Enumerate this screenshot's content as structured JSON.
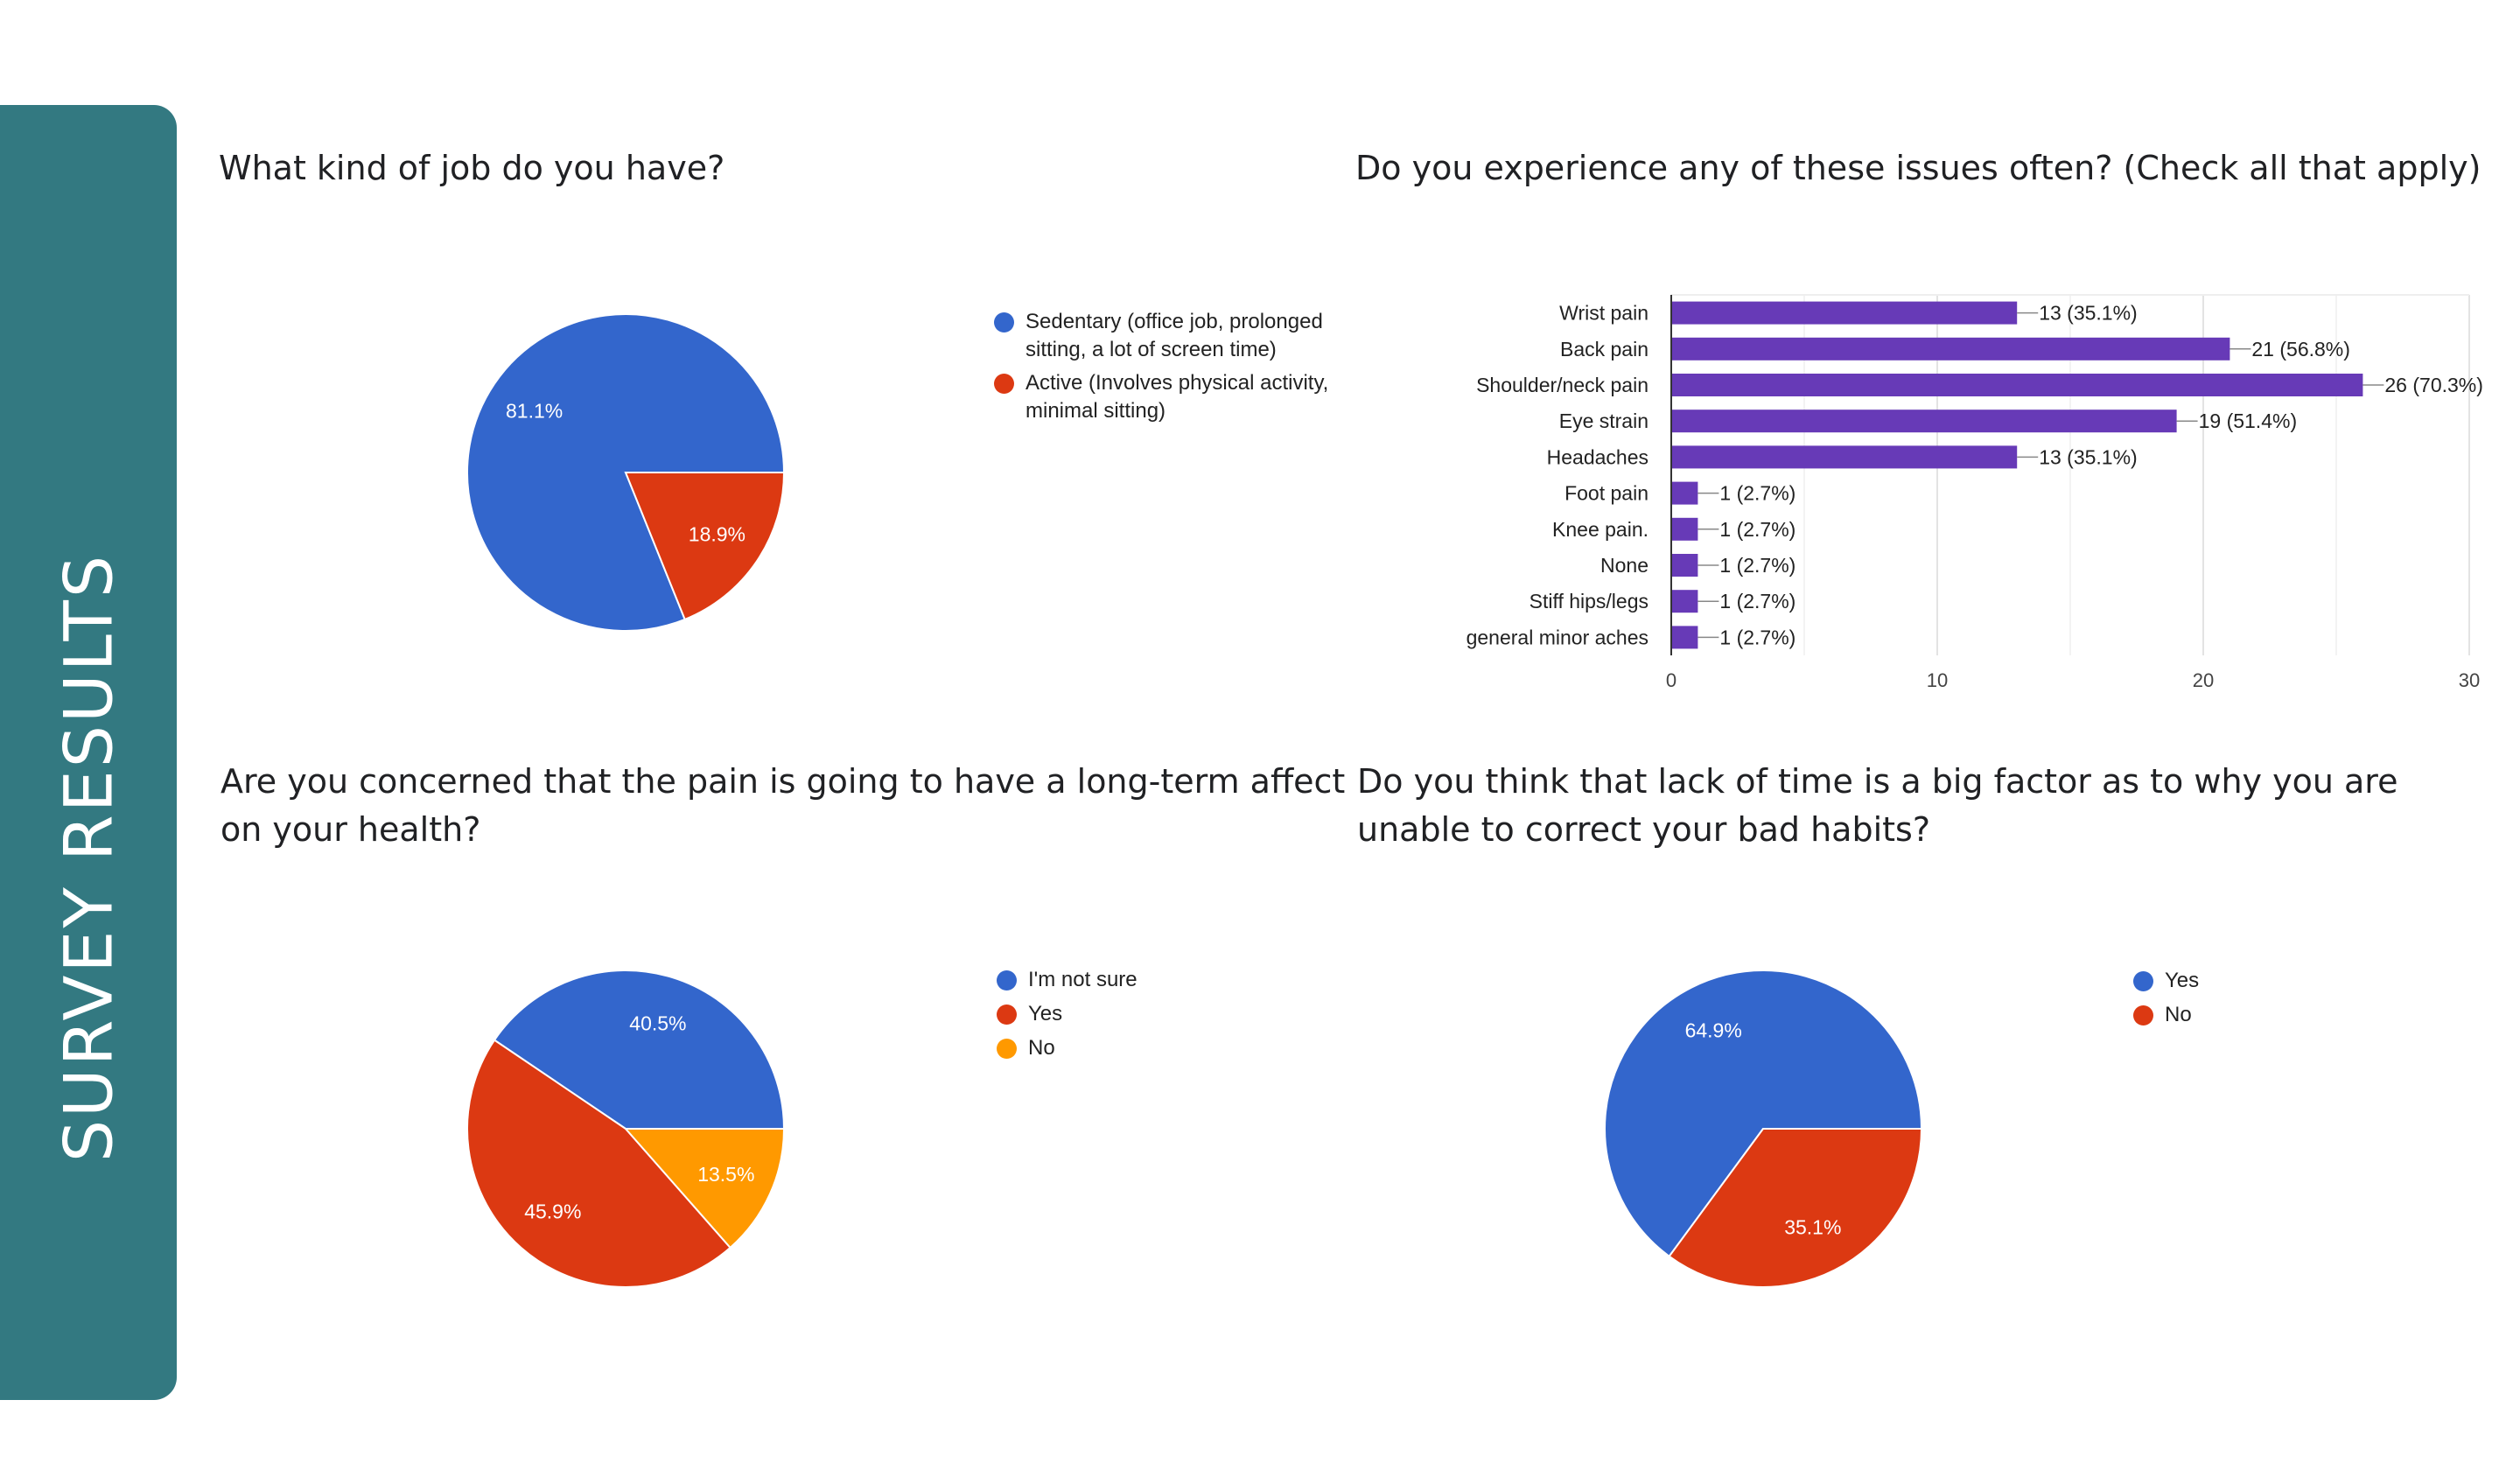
{
  "page": {
    "sidebar_title": "SURVEY RESULTS"
  },
  "chart_data": [
    {
      "type": "pie",
      "title": "What kind of job do you have?",
      "slices": [
        {
          "label": "Sedentary (office job, prolonged sitting, a lot of screen time)",
          "value": 81.1,
          "value_label": "81.1%",
          "color": "#3366cc"
        },
        {
          "label": "Active (Involves physical activity, minimal sitting)",
          "value": 18.9,
          "value_label": "18.9%",
          "color": "#dc3912"
        }
      ],
      "legend": "right"
    },
    {
      "type": "bar",
      "orientation": "horizontal",
      "title": "Do you experience any of these issues often? (Check all that apply)",
      "categories": [
        "Wrist pain",
        "Back pain",
        "Shoulder/neck pain",
        "Eye strain",
        "Headaches",
        "Foot pain",
        "Knee pain.",
        "None",
        "Stiff hips/legs",
        "general minor aches"
      ],
      "values": [
        13,
        21,
        26,
        19,
        13,
        1,
        1,
        1,
        1,
        1
      ],
      "value_labels": [
        "13 (35.1%)",
        "21 (56.8%)",
        "26 (70.3%)",
        "19 (51.4%)",
        "13 (35.1%)",
        "1 (2.7%)",
        "1 (2.7%)",
        "1 (2.7%)",
        "1 (2.7%)",
        "1 (2.7%)"
      ],
      "xticks": [
        "0",
        "10",
        "20",
        "30"
      ],
      "xlim": [
        0,
        30
      ],
      "grid": true,
      "color": "#673ab7"
    },
    {
      "type": "pie",
      "title": "Are you concerned that the pain is going to have a long-term affect on your health?",
      "slices": [
        {
          "label": "I'm not sure",
          "value": 40.5,
          "value_label": "40.5%",
          "color": "#3366cc"
        },
        {
          "label": "Yes",
          "value": 45.9,
          "value_label": "45.9%",
          "color": "#dc3912"
        },
        {
          "label": "No",
          "value": 13.5,
          "value_label": "13.5%",
          "color": "#ff9900"
        }
      ],
      "legend": "right"
    },
    {
      "type": "pie",
      "title": "Do you think that lack of time is a big factor as to why you are unable to correct your bad habits?",
      "slices": [
        {
          "label": "Yes",
          "value": 64.9,
          "value_label": "64.9%",
          "color": "#3366cc"
        },
        {
          "label": "No",
          "value": 35.1,
          "value_label": "35.1%",
          "color": "#dc3912"
        }
      ],
      "legend": "right"
    }
  ]
}
